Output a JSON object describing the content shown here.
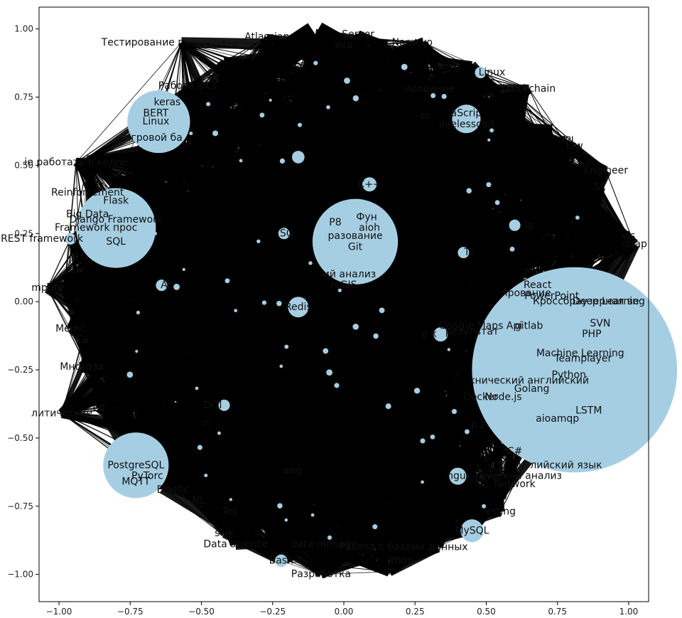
{
  "axes": {
    "xlim": [
      -1.07,
      1.07
    ],
    "ylim": [
      -1.1,
      1.08
    ],
    "xticks": [
      -1.0,
      -0.75,
      -0.5,
      -0.25,
      0.0,
      0.25,
      0.5,
      0.75,
      1.0
    ],
    "yticks": [
      -1.0,
      -0.75,
      -0.5,
      -0.25,
      0.0,
      0.25,
      0.5,
      0.75,
      1.0
    ],
    "xtick_labels": [
      "−1.00",
      "−0.75",
      "−0.50",
      "−0.25",
      "0.00",
      "0.25",
      "0.50",
      "0.75",
      "1.00"
    ],
    "ytick_labels": [
      "−1.00",
      "−0.75",
      "−0.50",
      "−0.25",
      "0.00",
      "0.25",
      "0.50",
      "0.75",
      "1.00"
    ]
  },
  "colors": {
    "node": "#a6cee3",
    "edge": "#000000",
    "text": "#111111"
  },
  "chart_data": {
    "type": "network",
    "nodes": [
      {
        "x": 0.81,
        "y": -0.25,
        "r": 0.36,
        "labels": [
          {
            "text": "SVN",
            "dx": 0.09,
            "dy": 0.17
          },
          {
            "text": "PHP",
            "dx": 0.06,
            "dy": 0.13
          },
          {
            "text": "gitlab",
            "dx": -0.16,
            "dy": 0.16
          },
          {
            "text": "Machine Learning",
            "dx": 0.02,
            "dy": 0.06
          },
          {
            "text": "Teamplayer",
            "dx": 0.03,
            "dy": 0.04
          },
          {
            "text": "Python",
            "dx": -0.02,
            "dy": -0.02
          },
          {
            "text": "хнический английский",
            "dx": -0.16,
            "dy": -0.04
          },
          {
            "text": "Golang",
            "dx": -0.15,
            "dy": -0.07
          },
          {
            "text": "Node.js",
            "dx": -0.25,
            "dy": -0.1
          },
          {
            "text": "Docker",
            "dx": -0.33,
            "dy": -0.1
          },
          {
            "text": "LSTM",
            "dx": 0.05,
            "dy": -0.15
          },
          {
            "text": "aioamqp",
            "dx": -0.06,
            "dy": -0.18
          },
          {
            "text": "C#",
            "dx": -0.21,
            "dy": -0.3
          },
          {
            "text": "нглийский язык",
            "dx": -0.05,
            "dy": -0.35
          },
          {
            "text": "тический анализ",
            "dx": -0.2,
            "dy": -0.39
          },
          {
            "text": "Network",
            "dx": -0.21,
            "dy": -0.42
          },
          {
            "text": "PowerPoint",
            "dx": -0.08,
            "dy": 0.27
          },
          {
            "text": "Кроссбраузерная ве",
            "dx": 0.04,
            "dy": 0.25
          },
          {
            "text": "Deep Learning",
            "dx": 0.12,
            "dy": 0.25
          },
          {
            "text": "Google Maps Api",
            "dx": -0.33,
            "dy": 0.16
          },
          {
            "text": "результат",
            "dx": -0.36,
            "dy": 0.14
          },
          {
            "text": "прование",
            "dx": -0.17,
            "dy": 0.28
          },
          {
            "text": "React",
            "dx": -0.13,
            "dy": 0.31
          }
        ]
      },
      {
        "x": 0.04,
        "y": 0.22,
        "r": 0.15,
        "labels": [
          {
            "text": "Git",
            "dx": 0.0,
            "dy": -0.02
          },
          {
            "text": "разование",
            "dx": 0.0,
            "dy": 0.02
          },
          {
            "text": "Фун",
            "dx": 0.04,
            "dy": 0.09
          },
          {
            "text": "aioh",
            "dx": 0.05,
            "dy": 0.05
          },
          {
            "text": "P8",
            "dx": -0.07,
            "dy": 0.07
          },
          {
            "text": "ий анализ",
            "dx": -0.02,
            "dy": -0.12
          },
          {
            "text": "rcGIS",
            "dx": -0.04,
            "dy": -0.16
          }
        ]
      },
      {
        "x": -0.8,
        "y": 0.27,
        "r": 0.14,
        "labels": [
          {
            "text": "Flask",
            "dx": 0.0,
            "dy": 0.1
          },
          {
            "text": "Reinforcement",
            "dx": -0.1,
            "dy": 0.13
          },
          {
            "text": "Django Framework",
            "dx": 0.0,
            "dy": 0.03
          },
          {
            "text": "Framework прос",
            "dx": -0.07,
            "dy": 0.0
          },
          {
            "text": "SQL",
            "dx": 0.0,
            "dy": -0.05
          },
          {
            "text": "Big Data",
            "dx": -0.1,
            "dy": 0.05
          }
        ]
      },
      {
        "x": -0.65,
        "y": 0.66,
        "r": 0.11,
        "labels": [
          {
            "text": "keras",
            "dx": 0.03,
            "dy": 0.07
          },
          {
            "text": "BERT",
            "dx": -0.01,
            "dy": 0.03
          },
          {
            "text": "Linux",
            "dx": -0.01,
            "dy": 0.0
          },
          {
            "text": "Игровой ба",
            "dx": -0.02,
            "dy": -0.06
          }
        ]
      },
      {
        "x": -0.73,
        "y": -0.6,
        "r": 0.115,
        "labels": [
          {
            "text": "PostgreSQL",
            "dx": 0.0,
            "dy": 0.0
          },
          {
            "text": "MQTT",
            "dx": 0.0,
            "dy": -0.06
          },
          {
            "text": "PyTorc",
            "dx": 0.04,
            "dy": -0.04
          },
          {
            "text": "Elastic",
            "dx": 0.13,
            "dy": -0.09
          }
        ]
      },
      {
        "x": -0.16,
        "y": -0.02,
        "r": 0.036,
        "labels": [
          {
            "text": "Redis",
            "dx": 0.0,
            "dy": 0.0
          }
        ]
      },
      {
        "x": 0.45,
        "y": -0.84,
        "r": 0.04,
        "labels": [
          {
            "text": "MySQL",
            "dx": 0.0,
            "dy": 0.0
          }
        ]
      },
      {
        "x": 0.43,
        "y": 0.67,
        "r": 0.05,
        "labels": [
          {
            "text": "aScrip",
            "dx": 0.0,
            "dy": 0.02
          },
          {
            "text": "avelesscod",
            "dx": 0.0,
            "dy": -0.02
          }
        ]
      },
      {
        "x": 0.4,
        "y": -0.64,
        "r": 0.03,
        "labels": []
      },
      {
        "x": -0.22,
        "y": -0.95,
        "r": 0.022,
        "labels": [
          {
            "text": "Bash",
            "dx": 0.0,
            "dy": 0.0
          }
        ]
      },
      {
        "x": -0.16,
        "y": 0.53,
        "r": 0.022,
        "labels": []
      },
      {
        "x": 0.09,
        "y": 0.43,
        "r": 0.025,
        "labels": [
          {
            "text": "С++",
            "dx": 0.0,
            "dy": 0.0
          }
        ]
      },
      {
        "x": 0.34,
        "y": -0.12,
        "r": 0.025,
        "labels": []
      },
      {
        "x": -0.64,
        "y": 0.06,
        "r": 0.02,
        "labels": [
          {
            "text": "An",
            "dx": 0.02,
            "dy": 0.0
          }
        ]
      },
      {
        "x": -0.21,
        "y": 0.25,
        "r": 0.02,
        "labels": [
          {
            "text": "SQ",
            "dx": 0.01,
            "dy": 0.0
          }
        ]
      },
      {
        "x": 0.42,
        "y": 0.18,
        "r": 0.02,
        "labels": [
          {
            "text": "Te",
            "dx": 0.02,
            "dy": 0.0
          }
        ]
      },
      {
        "x": -0.96,
        "y": 0.23,
        "r": 0.02,
        "labels": [
          {
            "text": "REST framework",
            "dx": -0.1,
            "dy": 0.0
          }
        ]
      },
      {
        "x": 0.48,
        "y": 0.84,
        "r": 0.02,
        "labels": [
          {
            "text": "Linux",
            "dx": 0.04,
            "dy": 0.0
          }
        ]
      },
      {
        "x": -0.42,
        "y": -0.38,
        "r": 0.02,
        "labels": [
          {
            "text": "DOI",
            "dx": -0.04,
            "dy": 0.0
          }
        ]
      },
      {
        "x": 0.6,
        "y": 0.28,
        "r": 0.02,
        "labels": [
          {
            "text": "lg",
            "dx": 0.05,
            "dy": 0.0
          }
        ]
      }
    ],
    "free_labels": [
      {
        "text": "Atlassian",
        "x": -0.27,
        "y": 0.97
      },
      {
        "text": "Server",
        "x": 0.05,
        "y": 0.98
      },
      {
        "text": "Тестирование пользовательск",
        "x": -0.57,
        "y": 0.95
      },
      {
        "text": "иса",
        "x": 0.0,
        "y": 0.94
      },
      {
        "text": "Nameko",
        "x": 0.24,
        "y": 0.95
      },
      {
        "text": "С",
        "x": 0.15,
        "y": 0.94
      },
      {
        "text": "Работа с CI",
        "x": -0.55,
        "y": 0.79
      },
      {
        "text": "blockchain",
        "x": 0.65,
        "y": 0.78
      },
      {
        "text": "ирование",
        "x": 0.3,
        "y": 0.78
      },
      {
        "text": "API",
        "x": 0.78,
        "y": 0.59
      },
      {
        "text": "low",
        "x": 0.81,
        "y": 0.57
      },
      {
        "text": "Engineer",
        "x": 0.92,
        "y": 0.48
      },
      {
        "text": "ST",
        "x": 0.9,
        "y": 0.42
      },
      {
        "text": "ie работать в колле",
        "x": -0.94,
        "y": 0.51
      },
      {
        "text": "ws",
        "x": 1.0,
        "y": 0.24
      },
      {
        "text": "strap",
        "x": 1.02,
        "y": 0.21
      },
      {
        "text": "mpute",
        "x": -1.04,
        "y": 0.05
      },
      {
        "text": "Memc",
        "x": -0.96,
        "y": -0.1
      },
      {
        "text": "Ca",
        "x": -0.92,
        "y": -0.14
      },
      {
        "text": "Многоза",
        "x": -0.92,
        "y": -0.24
      },
      {
        "text": "литические",
        "x": -0.99,
        "y": -0.41
      },
      {
        "text": "ed",
        "x": -0.86,
        "y": -0.39
      },
      {
        "text": "Data science",
        "x": -0.38,
        "y": -0.89
      },
      {
        "text": "scik",
        "x": -0.42,
        "y": -0.85
      },
      {
        "text": "Разработка",
        "x": -0.08,
        "y": -1.0
      },
      {
        "text": "Работа с базами данных",
        "x": 0.21,
        "y": -0.9
      },
      {
        "text": "т",
        "x": 0.16,
        "y": -0.99
      },
      {
        "text": "ithon",
        "x": 0.2,
        "y": -0.95
      },
      {
        "text": "data mining",
        "x": -0.08,
        "y": -0.89
      },
      {
        "text": "esting",
        "x": 0.55,
        "y": -0.77
      },
      {
        "text": "NL",
        "x": -0.51,
        "y": -0.73
      },
      {
        "text": "Tec",
        "x": -0.4,
        "y": -0.77
      },
      {
        "text": "ang",
        "x": -0.18,
        "y": -0.62
      },
      {
        "text": "ngui",
        "x": 0.4,
        "y": -0.64
      },
      {
        "text": "p.)",
        "x": 0.47,
        "y": -0.45
      },
      {
        "text": "в к",
        "x": 0.3,
        "y": -0.12
      },
      {
        "text": "ог",
        "x": 0.29,
        "y": 0.68
      }
    ],
    "hubs": [
      {
        "x": -0.1,
        "y": 0.98
      },
      {
        "x": 0.28,
        "y": 0.95
      },
      {
        "x": 0.45,
        "y": 0.87
      },
      {
        "x": 0.73,
        "y": 0.6
      },
      {
        "x": 0.86,
        "y": 0.47
      },
      {
        "x": 0.98,
        "y": 0.24
      },
      {
        "x": -0.98,
        "y": 0.05
      },
      {
        "x": -0.84,
        "y": -0.2
      },
      {
        "x": -0.52,
        "y": -0.72
      },
      {
        "x": -0.35,
        "y": -0.83
      },
      {
        "x": -0.08,
        "y": -1.0
      },
      {
        "x": 0.16,
        "y": -0.99
      },
      {
        "x": 0.33,
        "y": -0.9
      },
      {
        "x": 0.55,
        "y": -0.72
      },
      {
        "x": -0.42,
        "y": 0.88
      },
      {
        "x": -0.9,
        "y": 0.52
      },
      {
        "x": 0.62,
        "y": 0.75
      }
    ]
  }
}
